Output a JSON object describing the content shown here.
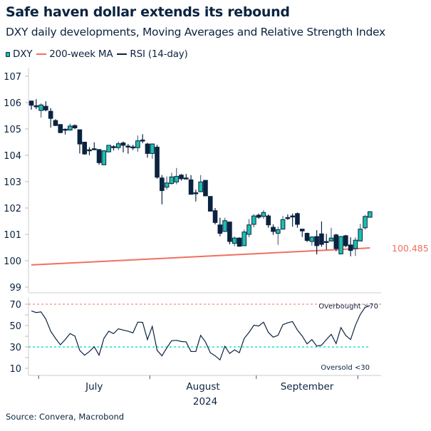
{
  "title": "Safe haven dollar extends its rebound",
  "subtitle": "DXY daily developments, Moving Averages and Relative Strength Index",
  "legend": [
    {
      "label": "DXY",
      "icon": "candlestick-icon"
    },
    {
      "label": "200-week MA",
      "color": "#f07060"
    },
    {
      "label": "RSI (14-day)",
      "color": "#0b2340"
    }
  ],
  "source": "Source: Convera, Macrobond",
  "colors": {
    "bull": "#1dbfae",
    "bear": "#0b2340",
    "ma": "#f07060",
    "rsi": "#0b2340",
    "overbought": "#f07060",
    "oversold": "#1de0c8"
  },
  "chart_data": [
    {
      "type": "candlestick",
      "ylim": [
        99,
        107
      ],
      "yticks": [
        "107",
        "106",
        "105",
        "104",
        "103",
        "102",
        "101",
        "100",
        "99"
      ],
      "ohlc": [
        [
          106.06,
          106.06,
          105.73,
          105.9
        ],
        [
          105.88,
          106.13,
          105.75,
          105.87
        ],
        [
          105.7,
          105.97,
          105.43,
          105.91
        ],
        [
          105.86,
          106.05,
          105.67,
          105.72
        ],
        [
          105.67,
          105.79,
          105.05,
          105.4
        ],
        [
          105.32,
          105.37,
          105.11,
          105.13
        ],
        [
          105.17,
          105.17,
          104.84,
          104.86
        ],
        [
          104.99,
          105.02,
          104.79,
          104.97
        ],
        [
          104.96,
          105.2,
          104.93,
          105.11
        ],
        [
          105.13,
          105.17,
          104.99,
          105.04
        ],
        [
          104.97,
          104.97,
          104.07,
          104.43
        ],
        [
          104.5,
          104.5,
          104.02,
          104.05
        ],
        [
          104.21,
          104.31,
          104.0,
          104.18
        ],
        [
          104.25,
          104.49,
          104.2,
          104.22
        ],
        [
          104.22,
          104.22,
          103.64,
          103.72
        ],
        [
          103.64,
          104.2,
          103.64,
          104.17
        ],
        [
          104.13,
          104.39,
          104.12,
          104.38
        ],
        [
          104.33,
          104.38,
          104.18,
          104.31
        ],
        [
          104.29,
          104.52,
          104.2,
          104.44
        ],
        [
          104.47,
          104.52,
          104.11,
          104.38
        ],
        [
          104.35,
          104.43,
          104.06,
          104.34
        ],
        [
          104.32,
          104.4,
          104.2,
          104.3
        ],
        [
          104.29,
          104.75,
          104.13,
          104.55
        ],
        [
          104.58,
          104.8,
          104.46,
          104.56
        ],
        [
          104.43,
          104.47,
          103.91,
          104.07
        ],
        [
          104.07,
          104.45,
          103.86,
          104.43
        ],
        [
          104.31,
          104.4,
          103.11,
          103.17
        ],
        [
          103.14,
          103.25,
          102.14,
          102.66
        ],
        [
          102.79,
          103.2,
          102.7,
          102.95
        ],
        [
          102.93,
          103.34,
          102.88,
          103.18
        ],
        [
          102.99,
          103.52,
          102.9,
          103.2
        ],
        [
          103.25,
          103.29,
          103.04,
          103.11
        ],
        [
          103.14,
          103.29,
          103.11,
          103.12
        ],
        [
          103.07,
          103.25,
          102.52,
          102.52
        ],
        [
          102.58,
          102.7,
          102.25,
          102.56
        ],
        [
          102.62,
          103.25,
          102.6,
          102.99
        ],
        [
          103.05,
          103.05,
          102.45,
          102.46
        ],
        [
          102.44,
          102.44,
          101.88,
          101.88
        ],
        [
          101.9,
          102.0,
          101.38,
          101.45
        ],
        [
          101.36,
          101.63,
          100.93,
          101.04
        ],
        [
          101.11,
          101.63,
          101.09,
          101.52
        ],
        [
          101.47,
          101.47,
          100.62,
          100.73
        ],
        [
          100.66,
          100.93,
          100.55,
          100.86
        ],
        [
          100.86,
          100.89,
          100.53,
          100.55
        ],
        [
          100.57,
          101.18,
          100.57,
          101.09
        ],
        [
          101.0,
          101.58,
          100.89,
          101.36
        ],
        [
          101.38,
          101.77,
          101.27,
          101.7
        ],
        [
          101.73,
          101.79,
          101.59,
          101.65
        ],
        [
          101.68,
          101.92,
          101.59,
          101.83
        ],
        [
          101.7,
          101.76,
          101.25,
          101.36
        ],
        [
          101.27,
          101.38,
          100.98,
          101.11
        ],
        [
          101.04,
          101.29,
          100.6,
          101.18
        ],
        [
          101.2,
          101.7,
          101.18,
          101.56
        ],
        [
          101.64,
          101.76,
          101.55,
          101.62
        ],
        [
          101.7,
          101.79,
          101.29,
          101.68
        ],
        [
          101.79,
          101.83,
          101.25,
          101.38
        ],
        [
          101.2,
          101.2,
          100.9,
          101.13
        ],
        [
          101.04,
          101.07,
          100.71,
          100.77
        ],
        [
          100.73,
          100.93,
          100.57,
          100.9
        ],
        [
          100.92,
          101.16,
          100.24,
          100.57
        ],
        [
          101.02,
          101.49,
          100.53,
          100.62
        ],
        [
          100.73,
          101.02,
          100.42,
          100.71
        ],
        [
          100.75,
          101.25,
          100.73,
          100.86
        ],
        [
          100.98,
          101.02,
          100.36,
          100.46
        ],
        [
          100.26,
          100.92,
          100.26,
          100.92
        ],
        [
          100.95,
          100.98,
          100.51,
          100.57
        ],
        [
          100.6,
          100.89,
          100.17,
          100.39
        ],
        [
          100.46,
          100.89,
          100.18,
          100.78
        ],
        [
          100.75,
          101.4,
          100.73,
          101.2
        ],
        [
          101.25,
          101.74,
          101.18,
          101.68
        ],
        [
          101.65,
          101.88,
          101.63,
          101.86
        ]
      ],
      "ma_200w": {
        "start": 99.84,
        "end": 100.485
      },
      "ma_label": "100.485"
    },
    {
      "type": "line",
      "ylim": [
        5,
        75
      ],
      "yticks": [
        "70",
        "50",
        "30",
        "10"
      ],
      "rsi": [
        63.7,
        62.2,
        62.8,
        56,
        44.7,
        38,
        32,
        36.9,
        42.5,
        40.2,
        26.8,
        22.3,
        25.7,
        30.2,
        22.3,
        38,
        44.7,
        42.5,
        47,
        45.8,
        44.7,
        43.2,
        53.2,
        53,
        36.9,
        49.2,
        26.8,
        21.7,
        29.1,
        35.8,
        36.2,
        35.1,
        34.7,
        25.7,
        25.7,
        40.9,
        34.7,
        24.6,
        21.7,
        17.9,
        30.6,
        23.9,
        27.3,
        24.6,
        38,
        43.6,
        50.3,
        49.6,
        53.2,
        43.6,
        39.1,
        40.9,
        50.8,
        52.6,
        53.7,
        45.8,
        40.2,
        32.9,
        36.9,
        30.8,
        31.7,
        36.9,
        41.8,
        33.1,
        48.1,
        40.7,
        36.9,
        50.3,
        60.4,
        67.1,
        68.7
      ],
      "overbought": 70,
      "oversold": 30,
      "overbought_label": "Overbought >70",
      "oversold_label": "Oversold <30"
    }
  ],
  "x_axis": {
    "months": [
      "July",
      "August",
      "September"
    ],
    "year": "2024"
  }
}
